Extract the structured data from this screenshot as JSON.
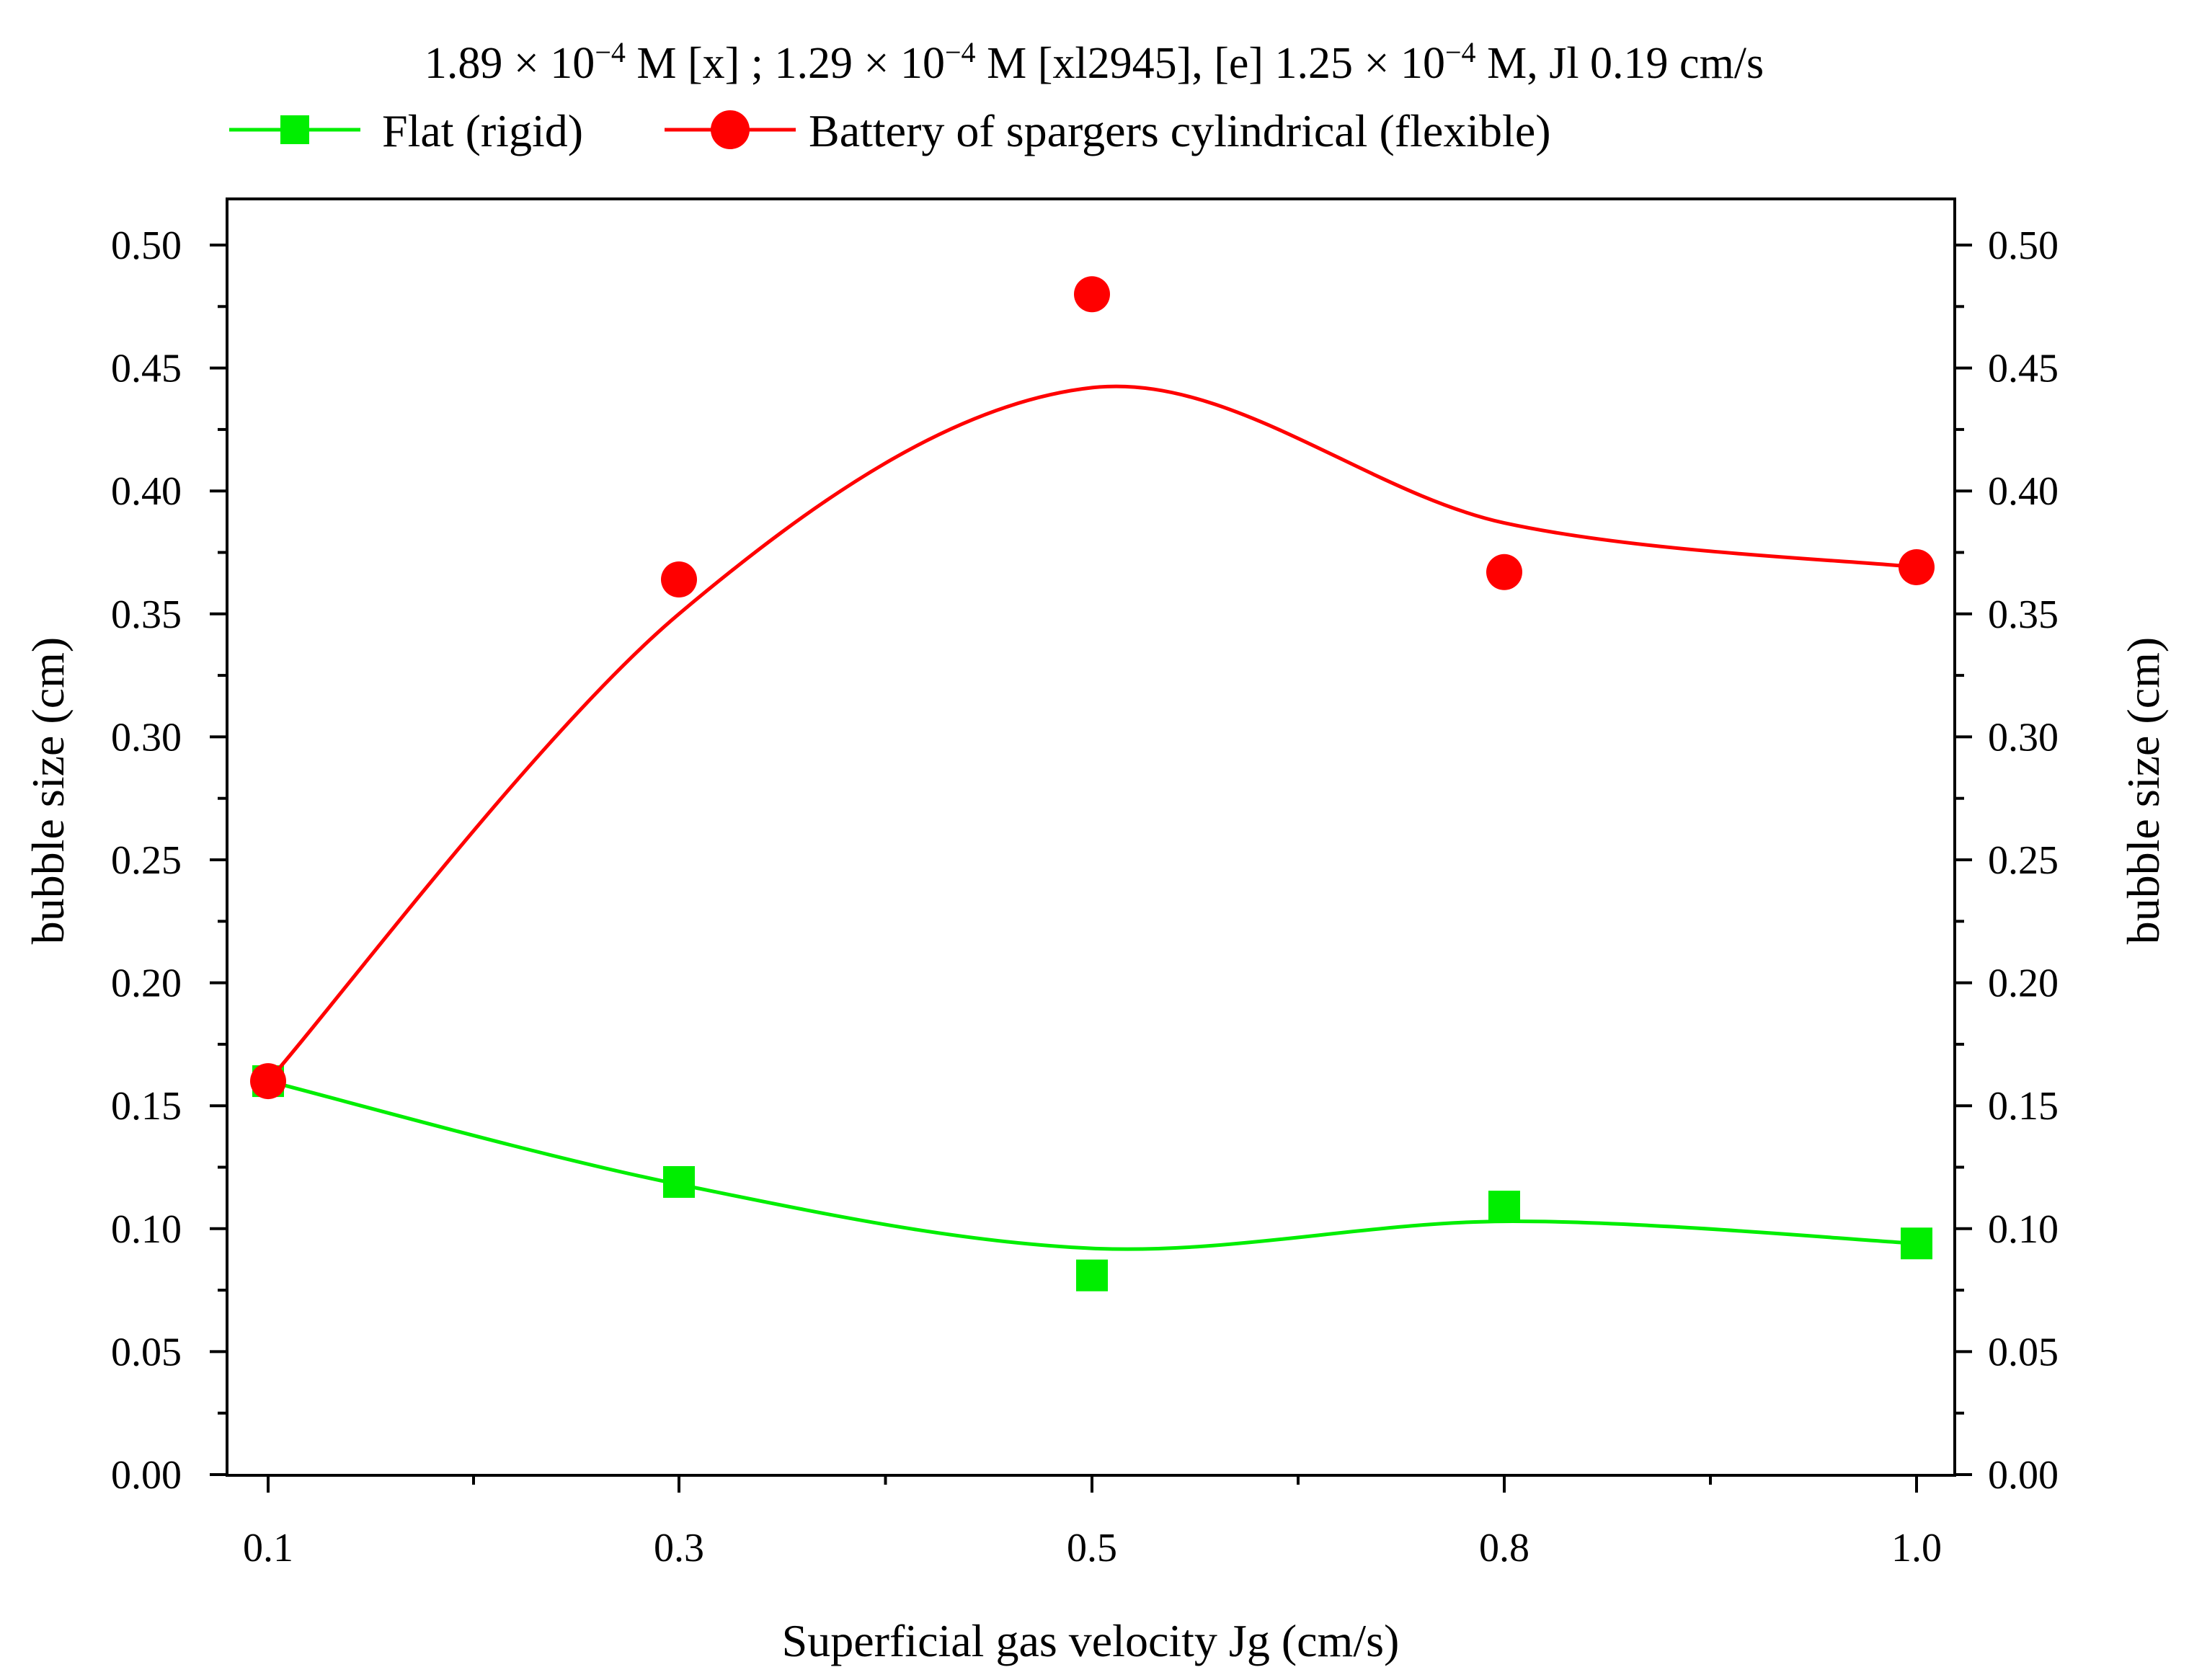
{
  "chart_data": {
    "type": "line",
    "title": {
      "parts": [
        {
          "text": "1.89 × 10",
          "sup": false
        },
        {
          "text": "−4",
          "sup": true
        },
        {
          "text": " M [x] ; 1.29 × 10",
          "sup": false
        },
        {
          "text": "−4",
          "sup": true
        },
        {
          "text": " M [xl2945], [e] 1.25 × 10",
          "sup": false
        },
        {
          "text": "−4",
          "sup": true
        },
        {
          "text": " M, Jl 0.19 cm/s",
          "sup": false
        }
      ]
    },
    "xlabel": "Superficial gas velocity Jg (cm/s)",
    "ylabel": "bubble size (cm)",
    "ylabel_right": "bubble size (cm)",
    "categories": [
      "0.1",
      "0.3",
      "0.5",
      "0.8",
      "1.0"
    ],
    "ylim": [
      0,
      0.52
    ],
    "yticks": [
      "0.00",
      "0.05",
      "0.10",
      "0.15",
      "0.20",
      "0.25",
      "0.30",
      "0.35",
      "0.40",
      "0.45",
      "0.50"
    ],
    "grid": false,
    "legend_position": "top",
    "series": [
      {
        "name": "Flat (rigid)",
        "color": "#00ee00",
        "marker": "square",
        "values": [
          0.16,
          0.119,
          0.081,
          0.109,
          0.094
        ],
        "smooth_fit": [
          0.16,
          0.118,
          0.092,
          0.103,
          0.094
        ]
      },
      {
        "name": "Battery of spargers cylindrical (flexible)",
        "color": "#ff0000",
        "marker": "circle",
        "values": [
          0.16,
          0.364,
          0.48,
          0.367,
          0.369
        ],
        "smooth_fit": [
          0.16,
          0.35,
          0.442,
          0.387,
          0.369
        ]
      }
    ]
  }
}
